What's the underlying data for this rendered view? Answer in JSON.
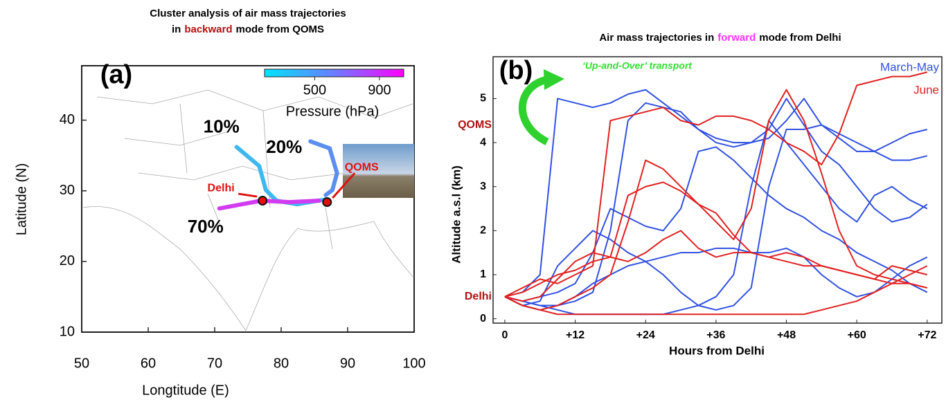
{
  "chart_data": [
    {
      "type": "trajectory-map",
      "title": [
        "Cluster analysis of air mass trajectories",
        "in",
        "backward",
        "mode from QOMS"
      ],
      "panel_label": "(a)",
      "x_label": "Longtitude (E)",
      "y_label": "Latitude (N)",
      "xlim": [
        50,
        100
      ],
      "xticks": [
        50,
        60,
        70,
        80,
        90,
        100
      ],
      "ylim": [
        10,
        47.7
      ],
      "yticks": [
        10,
        20,
        30,
        40
      ],
      "colorbar": {
        "label": "Pressure (hPa)",
        "lim": [
          190,
          1050
        ],
        "ticks": [
          500,
          900
        ],
        "colors": [
          "#00e5ff",
          "#6a7cff",
          "#ff00ff"
        ]
      },
      "series": [
        {
          "name": "10%",
          "color": "#3fb8f0",
          "lon": [
            73.3,
            76.7,
            77.7,
            79.3,
            82.4,
            85.5,
            87.0
          ],
          "lat": [
            36.2,
            33.5,
            30.1,
            28.6,
            28.1,
            28.6,
            28.8
          ]
        },
        {
          "name": "20%",
          "color": "#5c8ef0",
          "lon": [
            84.4,
            87.3,
            88.4,
            87.7,
            86.7
          ],
          "lat": [
            37.0,
            36.0,
            32.5,
            30.1,
            29.4
          ]
        },
        {
          "name": "70%",
          "color": "#d23cf0",
          "lon": [
            70.7,
            74.1,
            77.0,
            81.3,
            85.7
          ],
          "lat": [
            27.5,
            28.1,
            28.6,
            28.4,
            28.6
          ]
        }
      ],
      "points": [
        {
          "name": "Delhi",
          "lon": 77.2,
          "lat": 28.6
        },
        {
          "name": "QOMS",
          "lon": 86.9,
          "lat": 28.4
        }
      ]
    },
    {
      "type": "line",
      "title": [
        "Air mass trajectories in",
        "forward",
        "mode from Delhi"
      ],
      "panel_label": "(b)",
      "x_label": "Hours from Delhi",
      "y_label": "Altitude a.s.l (km)",
      "xlim": [
        -2,
        74.5
      ],
      "xticks": [
        0,
        {
          "value": 12,
          "label": "+12"
        },
        {
          "value": 24,
          "label": "+24"
        },
        {
          "value": 36,
          "label": "+36"
        },
        {
          "value": 48,
          "label": "+48"
        },
        {
          "value": 60,
          "label": "+60"
        },
        {
          "value": 72,
          "label": "+72"
        }
      ],
      "ylim": [
        -0.1,
        5.95
      ],
      "yticks": [
        0,
        1,
        2,
        3,
        4,
        5
      ],
      "annotation": "‘Up-and-Over’ transport",
      "levels": [
        {
          "label": "QOMS",
          "value": 4.4
        },
        {
          "label": "Delhi",
          "value": 0.5
        }
      ],
      "legend": [
        {
          "label": "March-May",
          "color": "#3050e0"
        },
        {
          "label": "June",
          "color": "#e02020"
        }
      ],
      "x": [
        0,
        3,
        6,
        9,
        12,
        15,
        18,
        21,
        24,
        27,
        30,
        33,
        36,
        39,
        42,
        45,
        48,
        51,
        54,
        57,
        60,
        63,
        66,
        69,
        72
      ],
      "series": [
        {
          "color": "#3050e0",
          "values": [
            0.5,
            0.6,
            1.0,
            5.0,
            4.9,
            4.8,
            4.9,
            5.1,
            5.2,
            4.9,
            4.6,
            4.3,
            4.1,
            4.0,
            4.0,
            4.1,
            4.5,
            5.0,
            4.4,
            4.2,
            4.0,
            3.8,
            3.6,
            3.6,
            3.7
          ]
        },
        {
          "color": "#3050e0",
          "values": [
            0.5,
            0.3,
            0.4,
            1.2,
            1.6,
            2.0,
            1.8,
            1.5,
            1.3,
            1.0,
            0.6,
            0.3,
            0.2,
            0.3,
            0.7,
            3.0,
            4.3,
            4.3,
            4.4,
            4.1,
            3.8,
            3.8,
            4.0,
            4.2,
            4.3
          ]
        },
        {
          "color": "#3050e0",
          "values": [
            0.5,
            0.4,
            0.3,
            0.3,
            0.4,
            0.6,
            2.0,
            4.5,
            4.9,
            4.8,
            4.7,
            4.3,
            4.0,
            3.9,
            4.0,
            4.3,
            5.0,
            4.4,
            3.8,
            3.5,
            3.0,
            2.5,
            2.2,
            2.3,
            2.6
          ]
        },
        {
          "color": "#3050e0",
          "values": [
            0.5,
            0.4,
            0.5,
            0.6,
            0.8,
            1.5,
            2.5,
            2.3,
            2.1,
            2.0,
            2.5,
            3.8,
            3.9,
            3.6,
            3.2,
            2.8,
            2.5,
            2.3,
            2.0,
            1.8,
            1.5,
            1.3,
            1.1,
            0.8,
            0.6
          ]
        },
        {
          "color": "#3050e0",
          "values": [
            0.5,
            0.3,
            0.2,
            0.3,
            0.5,
            0.8,
            1.0,
            1.2,
            1.3,
            1.4,
            1.5,
            1.5,
            1.6,
            1.6,
            1.5,
            1.5,
            1.6,
            1.4,
            1.0,
            0.7,
            0.5,
            0.6,
            0.9,
            1.2,
            1.4
          ]
        },
        {
          "color": "#3050e0",
          "values": [
            0.5,
            0.4,
            0.3,
            0.2,
            0.1,
            0.1,
            0.1,
            0.1,
            0.1,
            0.1,
            0.2,
            0.3,
            0.5,
            1.0,
            3.0,
            4.5,
            4.0,
            3.5,
            3.0,
            2.5,
            2.2,
            2.8,
            3.0,
            2.7,
            2.5
          ]
        },
        {
          "color": "#e02020",
          "values": [
            0.5,
            0.7,
            0.9,
            0.8,
            1.0,
            1.2,
            4.5,
            4.6,
            4.7,
            4.8,
            4.5,
            4.4,
            4.6,
            4.6,
            4.5,
            4.3,
            4.0,
            3.8,
            3.5,
            4.2,
            5.3,
            5.4,
            5.5,
            5.5,
            5.6
          ]
        },
        {
          "color": "#e02020",
          "values": [
            0.5,
            0.3,
            0.2,
            0.3,
            0.5,
            0.7,
            1.0,
            2.2,
            3.6,
            3.4,
            3.0,
            2.6,
            2.2,
            1.8,
            2.5,
            4.5,
            5.2,
            4.5,
            3.3,
            2.0,
            1.2,
            1.0,
            0.9,
            0.8,
            0.7
          ]
        },
        {
          "color": "#e02020",
          "values": [
            0.5,
            0.4,
            0.5,
            0.9,
            1.3,
            1.5,
            1.4,
            1.3,
            1.5,
            1.8,
            2.0,
            1.6,
            1.4,
            1.5,
            1.5,
            1.4,
            1.3,
            1.2,
            1.2,
            1.1,
            1.0,
            0.9,
            1.2,
            1.1,
            1.0
          ]
        },
        {
          "color": "#e02020",
          "values": [
            0.5,
            0.3,
            0.2,
            0.1,
            0.1,
            0.1,
            0.1,
            0.1,
            0.1,
            0.1,
            0.1,
            0.1,
            0.1,
            0.1,
            0.1,
            0.1,
            0.1,
            0.1,
            0.2,
            0.3,
            0.4,
            0.6,
            0.8,
            1.0,
            1.2
          ]
        },
        {
          "color": "#e02020",
          "values": [
            0.5,
            0.6,
            0.8,
            1.0,
            1.1,
            1.3,
            1.4,
            2.8,
            3.0,
            3.1,
            2.9,
            2.6,
            2.4,
            1.9,
            1.5,
            1.4,
            1.5,
            1.4,
            1.2,
            1.1,
            1.0,
            0.9,
            0.8,
            0.8,
            0.7
          ]
        }
      ]
    }
  ]
}
